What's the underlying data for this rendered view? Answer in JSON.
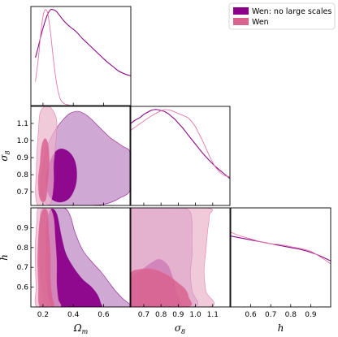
{
  "chart_data": {
    "type": "corner",
    "parameters": [
      {
        "key": "om",
        "label_main": "Ω",
        "label_sub": "m",
        "range": [
          0.12,
          0.78
        ],
        "ticks": [
          0.2,
          0.4,
          0.6
        ],
        "tick_labels": [
          "0.2",
          "0.4",
          "0.6"
        ]
      },
      {
        "key": "s8",
        "label_main": "σ",
        "label_sub": "8",
        "range": [
          0.62,
          1.2
        ],
        "ticks": [
          0.7,
          0.8,
          0.9,
          1.0,
          1.1
        ],
        "tick_labels": [
          "0.7",
          "0.8",
          "0.9",
          "1.0",
          "1.1"
        ]
      },
      {
        "key": "h",
        "label_main": "h",
        "label_sub": "",
        "range": [
          0.5,
          1.0
        ],
        "ticks": [
          0.6,
          0.7,
          0.8,
          0.9
        ],
        "tick_labels": [
          "0.6",
          "0.7",
          "0.8",
          "0.9"
        ]
      }
    ],
    "legend": {
      "placement": "top-right",
      "entries": [
        "Wen: no large scales",
        "Wen"
      ]
    },
    "series": [
      {
        "name": "Wen: no large scales",
        "color": "#8b0a8b",
        "fill_inner": "#8b008b",
        "fill_outer": "#c18fc7",
        "marginals": {
          "om": {
            "x": [
              0.15,
              0.17,
              0.19,
              0.21,
              0.23,
              0.25,
              0.27,
              0.29,
              0.31,
              0.34,
              0.38,
              0.42,
              0.46,
              0.5,
              0.54,
              0.58,
              0.62,
              0.66,
              0.7,
              0.74,
              0.78
            ],
            "y": [
              0.5,
              0.62,
              0.75,
              0.86,
              0.95,
              1.0,
              1.0,
              0.98,
              0.94,
              0.88,
              0.82,
              0.77,
              0.7,
              0.64,
              0.58,
              0.52,
              0.46,
              0.41,
              0.36,
              0.33,
              0.31
            ]
          },
          "s8": {
            "x": [
              0.62,
              0.65,
              0.68,
              0.7,
              0.72,
              0.74,
              0.76,
              0.78,
              0.8,
              0.82,
              0.84,
              0.86,
              0.88,
              0.9,
              0.93,
              0.96,
              1.0,
              1.04,
              1.08,
              1.12,
              1.16,
              1.2
            ],
            "y": [
              0.85,
              0.89,
              0.92,
              0.95,
              0.97,
              0.99,
              1.0,
              1.0,
              0.99,
              0.98,
              0.96,
              0.93,
              0.9,
              0.86,
              0.8,
              0.73,
              0.64,
              0.55,
              0.47,
              0.4,
              0.34,
              0.28
            ]
          },
          "h": {
            "x": [
              0.5,
              0.55,
              0.6,
              0.65,
              0.7,
              0.75,
              0.8,
              0.85,
              0.9,
              0.95,
              1.0
            ],
            "y": [
              0.74,
              0.72,
              0.7,
              0.68,
              0.66,
              0.64,
              0.62,
              0.6,
              0.57,
              0.53,
              0.48
            ]
          }
        },
        "contours": {
          "om_s8": {
            "outer": [
              [
                0.18,
                0.69
              ],
              [
                0.2,
                0.66
              ],
              [
                0.22,
                0.63
              ],
              [
                0.26,
                0.62
              ],
              [
                0.3,
                0.62
              ],
              [
                0.4,
                0.62
              ],
              [
                0.52,
                0.62
              ],
              [
                0.62,
                0.63
              ],
              [
                0.7,
                0.66
              ],
              [
                0.78,
                0.72
              ],
              [
                0.78,
                0.92
              ],
              [
                0.72,
                0.97
              ],
              [
                0.64,
                1.02
              ],
              [
                0.57,
                1.08
              ],
              [
                0.5,
                1.14
              ],
              [
                0.44,
                1.17
              ],
              [
                0.38,
                1.16
              ],
              [
                0.33,
                1.12
              ],
              [
                0.28,
                1.06
              ],
              [
                0.24,
                0.99
              ],
              [
                0.21,
                0.9
              ],
              [
                0.19,
                0.8
              ]
            ],
            "inner": [
              [
                0.22,
                0.74
              ],
              [
                0.24,
                0.68
              ],
              [
                0.27,
                0.65
              ],
              [
                0.32,
                0.64
              ],
              [
                0.37,
                0.66
              ],
              [
                0.4,
                0.7
              ],
              [
                0.42,
                0.76
              ],
              [
                0.42,
                0.84
              ],
              [
                0.4,
                0.9
              ],
              [
                0.36,
                0.94
              ],
              [
                0.31,
                0.95
              ],
              [
                0.27,
                0.92
              ],
              [
                0.24,
                0.86
              ],
              [
                0.22,
                0.8
              ]
            ]
          },
          "om_h": {
            "outer": [
              [
                0.19,
                0.99
              ],
              [
                0.25,
                1.0
              ],
              [
                0.34,
                1.0
              ],
              [
                0.38,
                0.96
              ],
              [
                0.41,
                0.88
              ],
              [
                0.46,
                0.79
              ],
              [
                0.52,
                0.73
              ],
              [
                0.58,
                0.68
              ],
              [
                0.63,
                0.63
              ],
              [
                0.68,
                0.58
              ],
              [
                0.73,
                0.54
              ],
              [
                0.78,
                0.51
              ],
              [
                0.78,
                0.5
              ],
              [
                0.66,
                0.5
              ],
              [
                0.5,
                0.5
              ],
              [
                0.4,
                0.5
              ],
              [
                0.3,
                0.5
              ],
              [
                0.24,
                0.5
              ],
              [
                0.21,
                0.55
              ],
              [
                0.19,
                0.63
              ],
              [
                0.18,
                0.72
              ],
              [
                0.18,
                0.82
              ],
              [
                0.18,
                0.91
              ]
            ],
            "inner": [
              [
                0.22,
                0.9
              ],
              [
                0.25,
                0.99
              ],
              [
                0.29,
                0.97
              ],
              [
                0.32,
                0.86
              ],
              [
                0.35,
                0.77
              ],
              [
                0.4,
                0.7
              ],
              [
                0.46,
                0.64
              ],
              [
                0.52,
                0.6
              ],
              [
                0.56,
                0.56
              ],
              [
                0.58,
                0.52
              ],
              [
                0.58,
                0.5
              ],
              [
                0.46,
                0.5
              ],
              [
                0.34,
                0.5
              ],
              [
                0.26,
                0.5
              ],
              [
                0.23,
                0.58
              ],
              [
                0.22,
                0.68
              ],
              [
                0.22,
                0.8
              ]
            ]
          },
          "s8_h": {
            "outer": [
              [
                0.62,
                1.0
              ],
              [
                0.88,
                1.0
              ],
              [
                0.96,
                0.99
              ],
              [
                0.98,
                0.93
              ],
              [
                0.98,
                0.85
              ],
              [
                0.98,
                0.76
              ],
              [
                0.97,
                0.67
              ],
              [
                0.98,
                0.58
              ],
              [
                0.99,
                0.5
              ],
              [
                0.62,
                0.5
              ]
            ],
            "inner": [
              [
                0.62,
                0.63
              ],
              [
                0.68,
                0.68
              ],
              [
                0.74,
                0.72
              ],
              [
                0.79,
                0.74
              ],
              [
                0.84,
                0.71
              ],
              [
                0.87,
                0.64
              ],
              [
                0.89,
                0.57
              ],
              [
                0.9,
                0.5
              ],
              [
                0.62,
                0.5
              ]
            ]
          }
        }
      },
      {
        "name": "Wen",
        "color": "#e377a8",
        "fill_inner": "#d9628f",
        "fill_outer": "#ebb6cc",
        "marginals": {
          "om": {
            "x": [
              0.15,
              0.17,
              0.18,
              0.19,
              0.2,
              0.21,
              0.22,
              0.23,
              0.24,
              0.25,
              0.26,
              0.27,
              0.28,
              0.29,
              0.3,
              0.31,
              0.32,
              0.34,
              0.36,
              0.38,
              0.4
            ],
            "y": [
              0.25,
              0.5,
              0.67,
              0.82,
              0.93,
              0.99,
              1.0,
              0.97,
              0.88,
              0.76,
              0.61,
              0.47,
              0.34,
              0.23,
              0.15,
              0.09,
              0.05,
              0.02,
              0.01,
              0.0,
              0.0
            ]
          },
          "s8": {
            "x": [
              0.62,
              0.66,
              0.7,
              0.74,
              0.78,
              0.82,
              0.86,
              0.9,
              0.94,
              0.96,
              0.98,
              1.0,
              1.02,
              1.04,
              1.06,
              1.08,
              1.1,
              1.12,
              1.16,
              1.2
            ],
            "y": [
              0.78,
              0.83,
              0.88,
              0.93,
              0.97,
              1.0,
              0.99,
              0.96,
              0.93,
              0.91,
              0.87,
              0.82,
              0.75,
              0.68,
              0.6,
              0.52,
              0.45,
              0.39,
              0.32,
              0.3
            ]
          },
          "h": {
            "x": [
              0.5,
              0.55,
              0.6,
              0.65,
              0.7,
              0.75,
              0.8,
              0.85,
              0.9,
              0.95,
              1.0
            ],
            "y": [
              0.78,
              0.74,
              0.71,
              0.68,
              0.66,
              0.65,
              0.63,
              0.61,
              0.58,
              0.52,
              0.45
            ]
          }
        },
        "contours": {
          "om_s8": {
            "outer": [
              [
                0.15,
                0.7
              ],
              [
                0.16,
                0.63
              ],
              [
                0.18,
                0.62
              ],
              [
                0.24,
                0.62
              ],
              [
                0.26,
                0.67
              ],
              [
                0.27,
                0.76
              ],
              [
                0.27,
                0.86
              ],
              [
                0.28,
                0.95
              ],
              [
                0.29,
                1.04
              ],
              [
                0.29,
                1.12
              ],
              [
                0.27,
                1.17
              ],
              [
                0.24,
                1.2
              ],
              [
                0.21,
                1.2
              ],
              [
                0.18,
                1.16
              ],
              [
                0.17,
                1.06
              ],
              [
                0.16,
                0.93
              ],
              [
                0.155,
                0.8
              ]
            ],
            "inner": [
              [
                0.17,
                0.72
              ],
              [
                0.18,
                0.66
              ],
              [
                0.2,
                0.64
              ],
              [
                0.22,
                0.66
              ],
              [
                0.23,
                0.73
              ],
              [
                0.24,
                0.82
              ],
              [
                0.24,
                0.92
              ],
              [
                0.23,
                0.99
              ],
              [
                0.21,
                1.01
              ],
              [
                0.19,
                0.96
              ],
              [
                0.18,
                0.86
              ],
              [
                0.17,
                0.79
              ]
            ]
          },
          "om_h": {
            "outer": [
              [
                0.15,
                0.82
              ],
              [
                0.16,
                0.94
              ],
              [
                0.17,
                1.0
              ],
              [
                0.24,
                1.0
              ],
              [
                0.27,
                0.95
              ],
              [
                0.28,
                0.85
              ],
              [
                0.29,
                0.73
              ],
              [
                0.29,
                0.62
              ],
              [
                0.3,
                0.54
              ],
              [
                0.31,
                0.5
              ],
              [
                0.16,
                0.5
              ],
              [
                0.155,
                0.6
              ],
              [
                0.15,
                0.7
              ]
            ],
            "inner": [
              [
                0.17,
                0.85
              ],
              [
                0.18,
                0.94
              ],
              [
                0.2,
                0.99
              ],
              [
                0.23,
                0.98
              ],
              [
                0.24,
                0.88
              ],
              [
                0.25,
                0.77
              ],
              [
                0.25,
                0.65
              ],
              [
                0.26,
                0.56
              ],
              [
                0.27,
                0.5
              ],
              [
                0.18,
                0.5
              ],
              [
                0.17,
                0.62
              ],
              [
                0.165,
                0.73
              ]
            ]
          },
          "s8_h": {
            "outer": [
              [
                0.62,
                1.0
              ],
              [
                1.06,
                1.0
              ],
              [
                1.08,
                0.96
              ],
              [
                1.07,
                0.88
              ],
              [
                1.06,
                0.78
              ],
              [
                1.05,
                0.68
              ],
              [
                1.06,
                0.58
              ],
              [
                1.08,
                0.5
              ],
              [
                0.62,
                0.5
              ]
            ],
            "inner": [
              [
                0.62,
                0.66
              ],
              [
                0.68,
                0.69
              ],
              [
                0.76,
                0.69
              ],
              [
                0.84,
                0.66
              ],
              [
                0.9,
                0.62
              ],
              [
                0.94,
                0.59
              ],
              [
                0.96,
                0.55
              ],
              [
                0.95,
                0.5
              ],
              [
                0.62,
                0.5
              ]
            ]
          }
        }
      }
    ]
  }
}
